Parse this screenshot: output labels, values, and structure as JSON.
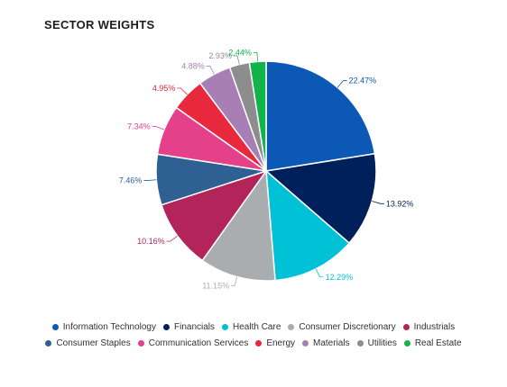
{
  "chart_data": {
    "type": "pie",
    "title": "SECTOR WEIGHTS",
    "slices": [
      {
        "name": "Information Technology",
        "value": 22.47,
        "label": "22.47%",
        "color": "#0b58b5"
      },
      {
        "name": "Financials",
        "value": 13.92,
        "label": "13.92%",
        "color": "#00205b"
      },
      {
        "name": "Health Care",
        "value": 12.29,
        "label": "12.29%",
        "color": "#00c1d5"
      },
      {
        "name": "Consumer Discretionary",
        "value": 11.15,
        "label": "11.15%",
        "color": "#aaadb0"
      },
      {
        "name": "Industrials",
        "value": 10.16,
        "label": "10.16%",
        "color": "#b3245b"
      },
      {
        "name": "Consumer Staples",
        "value": 7.46,
        "label": "7.46%",
        "color": "#2e6094"
      },
      {
        "name": "Communication Services",
        "value": 7.34,
        "label": "7.34%",
        "color": "#e4418a"
      },
      {
        "name": "Energy",
        "value": 4.95,
        "label": "4.95%",
        "color": "#e8293d"
      },
      {
        "name": "Materials",
        "value": 4.88,
        "label": "4.88%",
        "color": "#a77fb5"
      },
      {
        "name": "Utilities",
        "value": 2.93,
        "label": "2.93%",
        "color": "#8d8d8d"
      },
      {
        "name": "Real Estate",
        "value": 2.44,
        "label": "2.44%",
        "color": "#12b34b"
      }
    ],
    "legend_position": "bottom",
    "legend_rows": [
      [
        "Information Technology",
        "Financials",
        "Health Care",
        "Consumer Discretionary",
        "Industrials"
      ],
      [
        "Consumer Staples",
        "Communication Services",
        "Energy",
        "Materials",
        "Utilities",
        "Real Estate"
      ]
    ]
  }
}
